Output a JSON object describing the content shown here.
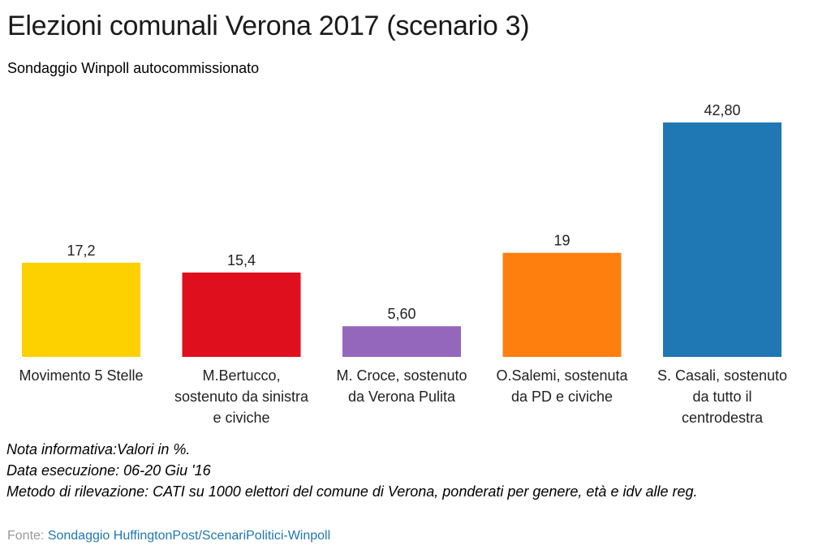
{
  "title": "Elezioni comunali Verona 2017 (scenario 3)",
  "subtitle": "Sondaggio Winpoll autocommissionato",
  "chart_data": {
    "type": "bar",
    "categories": [
      "Movimento 5 Stelle",
      "M.Bertucco, sostenuto da sinistra e civiche",
      "M. Croce, sostenuto da Verona Pulita",
      "O.Salemi, sostenuta da PD e civiche",
      "S. Casali, sostenuto da tutto il centrodestra"
    ],
    "values": [
      17.2,
      15.4,
      5.6,
      19,
      42.8
    ],
    "value_labels": [
      "17,2",
      "15,4",
      "5,60",
      "19",
      "42,80"
    ],
    "colors": [
      "#FDD000",
      "#E00F1E",
      "#9467BD",
      "#FF7F0E",
      "#1F77B4"
    ],
    "ylim": [
      0,
      42.8
    ],
    "grid": false,
    "xlabel": "",
    "ylabel": ""
  },
  "notes": [
    "Nota informativa:Valori in %.",
    "Data esecuzione: 06-20 Giu '16",
    "Metodo di rilevazione: CATI su 1000 elettori del comune di Verona, ponderati per genere, età e idv alle reg."
  ],
  "source": {
    "label": "Fonte:",
    "link_text": "Sondaggio HuffingtonPost/ScenariPolitici-Winpoll"
  }
}
